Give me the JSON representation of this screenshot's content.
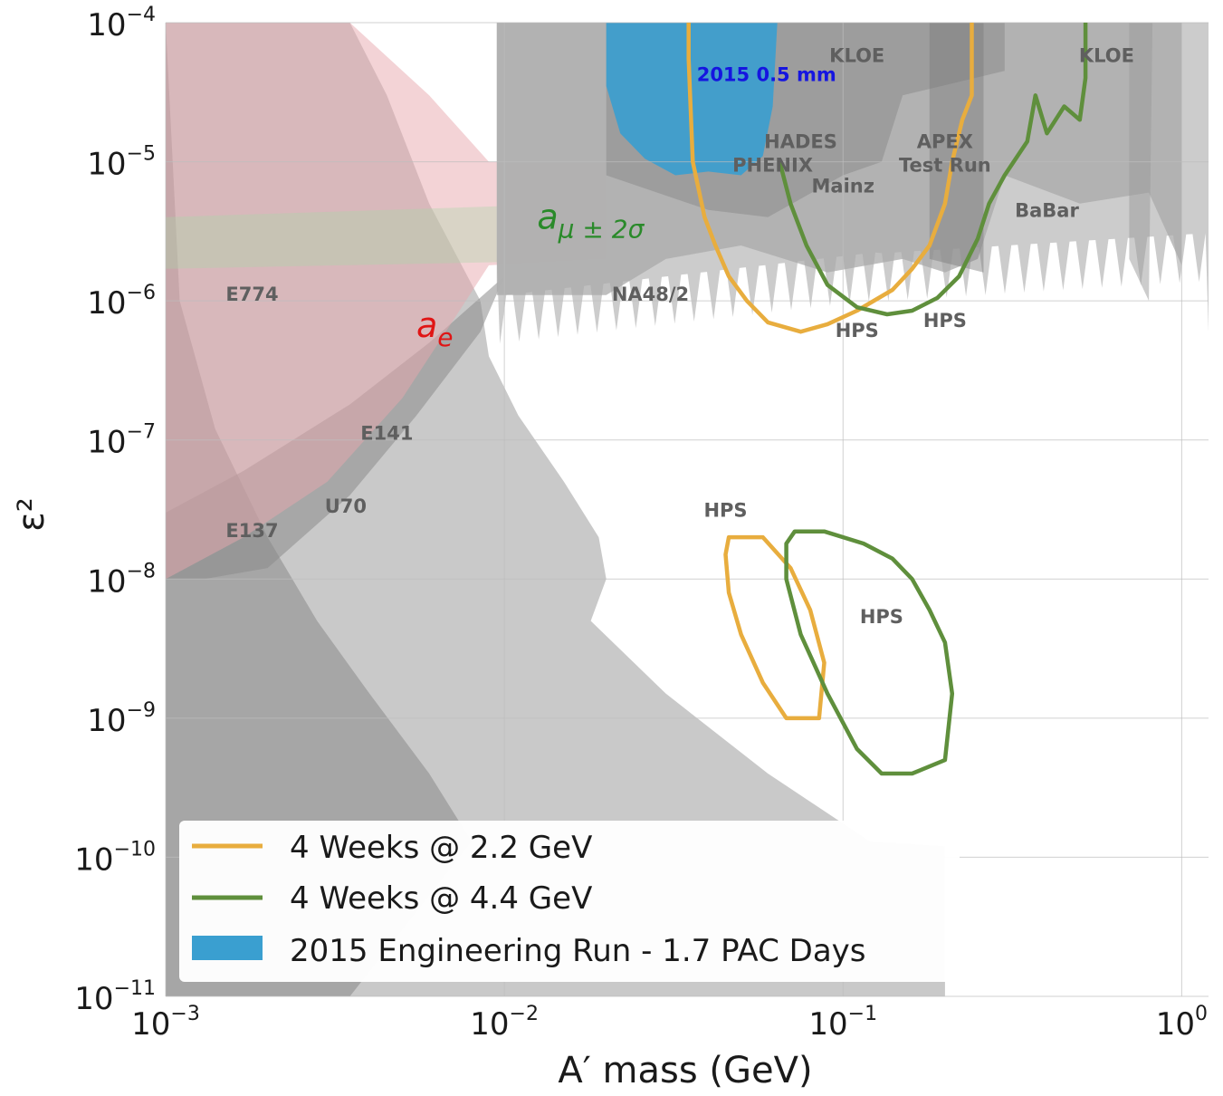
{
  "chart_data": {
    "type": "line",
    "xlabel": "A′ mass (GeV)",
    "ylabel": "ε²",
    "xscale": "log",
    "yscale": "log",
    "xlim": [
      0.001,
      1.2
    ],
    "ylim": [
      1e-11,
      0.0001
    ],
    "x_ticks": [
      {
        "value": 0.001,
        "base": "10",
        "exp": "−3"
      },
      {
        "value": 0.01,
        "base": "10",
        "exp": "−2"
      },
      {
        "value": 0.1,
        "base": "10",
        "exp": "−1"
      },
      {
        "value": 1,
        "base": "10",
        "exp": "0"
      }
    ],
    "y_ticks": [
      {
        "value": 0.0001,
        "base": "10",
        "exp": "−4"
      },
      {
        "value": 1e-05,
        "base": "10",
        "exp": "−5"
      },
      {
        "value": 1e-06,
        "base": "10",
        "exp": "−6"
      },
      {
        "value": 1e-07,
        "base": "10",
        "exp": "−7"
      },
      {
        "value": 1e-08,
        "base": "10",
        "exp": "−8"
      },
      {
        "value": 1e-09,
        "base": "10",
        "exp": "−9"
      },
      {
        "value": 1e-10,
        "base": "10",
        "exp": "−10"
      },
      {
        "value": 1e-11,
        "base": "10",
        "exp": "−11"
      }
    ],
    "grid": true,
    "legend_position": "bottom-left",
    "colors": {
      "hps_2_2": "#e8ad3e",
      "hps_4_4": "#5f8f3c",
      "engineering_run": "#3a9fd0",
      "excluded": "#8a8a8a",
      "ae": "#e8a7ad",
      "amu": "#a9d8a9"
    },
    "legend": [
      {
        "label": "4 Weeks @ 2.2 GeV",
        "kind": "line",
        "color": "#e8ad3e"
      },
      {
        "label": "4 Weeks @ 4.4 GeV",
        "kind": "line",
        "color": "#5f8f3c"
      },
      {
        "label": "2015 Engineering Run - 1.7 PAC Days",
        "kind": "patch",
        "color": "#3a9fd0"
      }
    ],
    "region_labels": [
      {
        "text": "KLOE",
        "x": 0.11,
        "y": 5.2e-05
      },
      {
        "text": "KLOE",
        "x": 0.6,
        "y": 5.2e-05
      },
      {
        "text": "HADES",
        "x": 0.075,
        "y": 1.25e-05
      },
      {
        "text": "PHENIX",
        "x": 0.062,
        "y": 8.5e-06
      },
      {
        "text": "Mainz",
        "x": 0.1,
        "y": 6e-06
      },
      {
        "text": "APEX",
        "x": 0.2,
        "y": 1.25e-05
      },
      {
        "text": "Test Run",
        "x": 0.2,
        "y": 8.5e-06
      },
      {
        "text": "BaBar",
        "x": 0.4,
        "y": 4e-06
      },
      {
        "text": "NA48/2",
        "x": 0.027,
        "y": 1e-06
      },
      {
        "text": "E774",
        "x": 0.0018,
        "y": 1e-06
      },
      {
        "text": "E141",
        "x": 0.0045,
        "y": 1e-07
      },
      {
        "text": "U70",
        "x": 0.0034,
        "y": 3e-08
      },
      {
        "text": "E137",
        "x": 0.0018,
        "y": 2e-08
      },
      {
        "text": "HPS",
        "x": 0.11,
        "y": 5.5e-07
      },
      {
        "text": "HPS",
        "x": 0.2,
        "y": 6.5e-07
      },
      {
        "text": "HPS",
        "x": 0.045,
        "y": 2.8e-08
      },
      {
        "text": "HPS",
        "x": 0.13,
        "y": 4.8e-09
      }
    ],
    "annotations": [
      {
        "text": "2015 0.5 mm",
        "x": 0.037,
        "y": 3.8e-05,
        "color": "#1515e0"
      },
      {
        "text": "a",
        "sub": "e",
        "x": 0.0055,
        "y": 5.5e-07,
        "color": "#e01515"
      },
      {
        "text": "a",
        "sub": "μ ± 2σ",
        "x": 0.0125,
        "y": 3.3e-06,
        "color": "#2a8a2a"
      }
    ],
    "series": [
      {
        "name": "4 Weeks @ 2.2 GeV (prompt)",
        "color": "#e8ad3e",
        "points": [
          [
            0.035,
            0.0001
          ],
          [
            0.035,
            5.5e-05
          ],
          [
            0.036,
            1e-05
          ],
          [
            0.039,
            4e-06
          ],
          [
            0.042,
            2.5e-06
          ],
          [
            0.046,
            1.5e-06
          ],
          [
            0.052,
            1e-06
          ],
          [
            0.06,
            7e-07
          ],
          [
            0.075,
            6e-07
          ],
          [
            0.09,
            6.8e-07
          ],
          [
            0.11,
            8.5e-07
          ],
          [
            0.14,
            1.2e-06
          ],
          [
            0.16,
            1.7e-06
          ],
          [
            0.18,
            2.5e-06
          ],
          [
            0.2,
            5e-06
          ],
          [
            0.21,
            1e-05
          ],
          [
            0.225,
            2e-05
          ],
          [
            0.24,
            3e-05
          ],
          [
            0.24,
            0.0001
          ]
        ]
      },
      {
        "name": "4 Weeks @ 4.4 GeV (prompt)",
        "color": "#5f8f3c",
        "points": [
          [
            0.065,
            1e-05
          ],
          [
            0.07,
            5e-06
          ],
          [
            0.078,
            2.5e-06
          ],
          [
            0.09,
            1.3e-06
          ],
          [
            0.11,
            9e-07
          ],
          [
            0.135,
            8e-07
          ],
          [
            0.16,
            8.5e-07
          ],
          [
            0.19,
            1.05e-06
          ],
          [
            0.22,
            1.5e-06
          ],
          [
            0.25,
            2.8e-06
          ],
          [
            0.27,
            5e-06
          ],
          [
            0.3,
            8e-06
          ],
          [
            0.35,
            1.4e-05
          ],
          [
            0.37,
            3e-05
          ],
          [
            0.4,
            1.6e-05
          ],
          [
            0.45,
            2.5e-05
          ],
          [
            0.5,
            2e-05
          ],
          [
            0.52,
            4e-05
          ],
          [
            0.52,
            0.0001
          ]
        ]
      },
      {
        "name": "4 Weeks @ 2.2 GeV (displaced)",
        "color": "#e8ad3e",
        "closed": true,
        "points": [
          [
            0.046,
            2e-08
          ],
          [
            0.058,
            2e-08
          ],
          [
            0.07,
            1.2e-08
          ],
          [
            0.08,
            6e-09
          ],
          [
            0.088,
            2.5e-09
          ],
          [
            0.085,
            1e-09
          ],
          [
            0.068,
            1e-09
          ],
          [
            0.058,
            1.8e-09
          ],
          [
            0.05,
            4e-09
          ],
          [
            0.046,
            8e-09
          ],
          [
            0.045,
            1.5e-08
          ]
        ]
      },
      {
        "name": "4 Weeks @ 4.4 GeV (displaced)",
        "color": "#5f8f3c",
        "closed": true,
        "points": [
          [
            0.072,
            2.2e-08
          ],
          [
            0.088,
            2.2e-08
          ],
          [
            0.115,
            1.8e-08
          ],
          [
            0.14,
            1.4e-08
          ],
          [
            0.16,
            1e-08
          ],
          [
            0.18,
            6e-09
          ],
          [
            0.2,
            3.5e-09
          ],
          [
            0.21,
            1.5e-09
          ],
          [
            0.2,
            5e-10
          ],
          [
            0.16,
            4e-10
          ],
          [
            0.13,
            4e-10
          ],
          [
            0.11,
            6e-10
          ],
          [
            0.09,
            1.5e-09
          ],
          [
            0.075,
            4e-09
          ],
          [
            0.068,
            1e-08
          ],
          [
            0.068,
            1.8e-08
          ]
        ]
      }
    ]
  }
}
